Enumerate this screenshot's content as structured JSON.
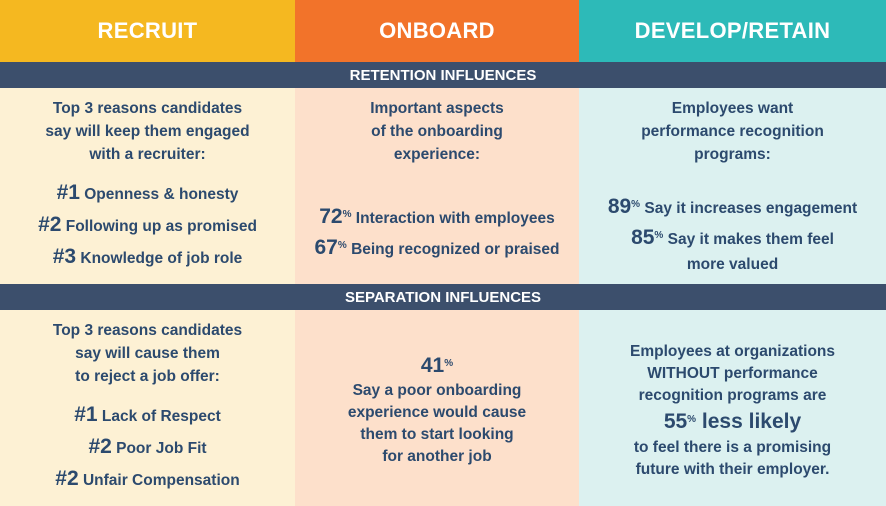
{
  "headers": {
    "recruit": "RECRUIT",
    "onboard": "ONBOARD",
    "develop": "DEVELOP/RETAIN"
  },
  "bands": {
    "retention": "RETENTION INFLUENCES",
    "separation": "SEPARATION INFLUENCES"
  },
  "retention": {
    "recruit": {
      "intro": [
        "Top 3 reasons candidates",
        "say will keep them engaged",
        "with a recruiter:"
      ],
      "items": [
        {
          "rank": "#1",
          "text": "Openness & honesty"
        },
        {
          "rank": "#2",
          "text": "Following up as promised"
        },
        {
          "rank": "#3",
          "text": "Knowledge of job role"
        }
      ]
    },
    "onboard": {
      "intro": [
        "Important aspects",
        "of the onboarding",
        "experience:"
      ],
      "stats": [
        {
          "value": "72",
          "unit": "%",
          "text": "Interaction with employees"
        },
        {
          "value": "67",
          "unit": "%",
          "text": "Being recognized or praised"
        }
      ]
    },
    "develop": {
      "intro": [
        "Employees want",
        "performance recognition",
        "programs:"
      ],
      "stats": [
        {
          "value": "89",
          "unit": "%",
          "text": "Say it increases engagement"
        },
        {
          "value": "85",
          "unit": "%",
          "text": "Say it makes them feel"
        }
      ],
      "tail": "more valued"
    }
  },
  "separation": {
    "recruit": {
      "intro": [
        "Top 3 reasons candidates",
        "say will cause them",
        "to reject a job offer:"
      ],
      "items": [
        {
          "rank": "#1",
          "text": "Lack of Respect"
        },
        {
          "rank": "#2",
          "text": "Poor Job Fit"
        },
        {
          "rank": "#2",
          "text": "Unfair Compensation"
        }
      ]
    },
    "onboard": {
      "value": "41",
      "unit": "%",
      "lines": [
        "Say a poor onboarding",
        "experience would cause",
        "them to start looking",
        "for another job"
      ]
    },
    "develop": {
      "lines": [
        "Employees at organizations",
        "WITHOUT performance",
        "recognition programs are"
      ],
      "value": "55",
      "unit": "%",
      "emph": "less likely",
      "tail": [
        "to feel there is a promising",
        "future with their employer."
      ]
    }
  }
}
